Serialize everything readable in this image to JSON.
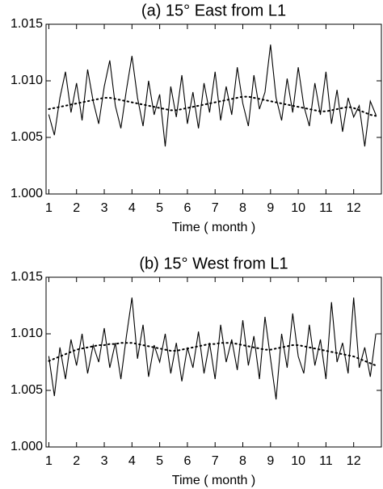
{
  "chart_data": [
    {
      "type": "line",
      "title": "(a) 15° East from L1",
      "xlabel": "Time ( month )",
      "xlim": [
        0.9,
        13
      ],
      "ylim": [
        1.0,
        1.015
      ],
      "xticks": [
        1,
        2,
        3,
        4,
        5,
        6,
        7,
        8,
        9,
        10,
        11,
        12
      ],
      "yticks": [
        {
          "value": 1.0,
          "label": "1.000"
        },
        {
          "value": 1.005,
          "label": "1.005"
        },
        {
          "value": 1.01,
          "label": "1.010"
        },
        {
          "value": 1.015,
          "label": "1.015"
        }
      ],
      "x": [
        1,
        1.2,
        1.4,
        1.6,
        1.8,
        2,
        2.2,
        2.4,
        2.6,
        2.8,
        3,
        3.2,
        3.4,
        3.6,
        3.8,
        4,
        4.2,
        4.4,
        4.6,
        4.8,
        5,
        5.2,
        5.4,
        5.6,
        5.8,
        6,
        6.2,
        6.4,
        6.6,
        6.8,
        7,
        7.2,
        7.4,
        7.6,
        7.8,
        8,
        8.2,
        8.4,
        8.6,
        8.8,
        9,
        9.2,
        9.4,
        9.6,
        9.8,
        10,
        10.2,
        10.4,
        10.6,
        10.8,
        11,
        11.2,
        11.4,
        11.6,
        11.8,
        12,
        12.2,
        12.4,
        12.6,
        12.8
      ],
      "series": [
        {
          "color": "#000000",
          "style": "solid",
          "values": [
            1.007,
            1.0052,
            1.0085,
            1.0108,
            1.0072,
            1.0098,
            1.0065,
            1.011,
            1.0082,
            1.0062,
            1.0095,
            1.0118,
            1.0078,
            1.0058,
            1.0092,
            1.0122,
            1.0085,
            1.006,
            1.01,
            1.007,
            1.0088,
            1.0042,
            1.0095,
            1.0068,
            1.0105,
            1.0062,
            1.009,
            1.0058,
            1.0098,
            1.0072,
            1.0108,
            1.0065,
            1.0095,
            1.007,
            1.0112,
            1.008,
            1.006,
            1.0105,
            1.0075,
            1.009,
            1.0132,
            1.0085,
            1.0065,
            1.0102,
            1.0072,
            1.0112,
            1.0078,
            1.006,
            1.0098,
            1.007,
            1.0108,
            1.0062,
            1.0092,
            1.0055,
            1.0085,
            1.0068,
            1.0078,
            1.0042,
            1.0082,
            1.007
          ]
        },
        {
          "color": "#000000",
          "style": "dotted",
          "values": [
            1.0075,
            1.0076,
            1.0077,
            1.0078,
            1.0079,
            1.008,
            1.0081,
            1.0082,
            1.0083,
            1.0084,
            1.0085,
            1.0085,
            1.0084,
            1.0083,
            1.0082,
            1.0081,
            1.008,
            1.0079,
            1.0078,
            1.0077,
            1.0076,
            1.0075,
            1.0074,
            1.0074,
            1.0075,
            1.0076,
            1.0077,
            1.0078,
            1.0079,
            1.008,
            1.0081,
            1.0082,
            1.0083,
            1.0084,
            1.0085,
            1.0086,
            1.0086,
            1.0085,
            1.0084,
            1.0083,
            1.0082,
            1.0081,
            1.008,
            1.0079,
            1.0078,
            1.0077,
            1.0076,
            1.0075,
            1.0074,
            1.0073,
            1.0073,
            1.0074,
            1.0075,
            1.0076,
            1.0077,
            1.0076,
            1.0074,
            1.0072,
            1.007,
            1.0069
          ]
        }
      ]
    },
    {
      "type": "line",
      "title": "(b) 15° West from L1",
      "xlabel": "Time ( month )",
      "xlim": [
        0.9,
        13
      ],
      "ylim": [
        1.0,
        1.015
      ],
      "xticks": [
        1,
        2,
        3,
        4,
        5,
        6,
        7,
        8,
        9,
        10,
        11,
        12
      ],
      "yticks": [
        {
          "value": 1.0,
          "label": "1.000"
        },
        {
          "value": 1.005,
          "label": "1.005"
        },
        {
          "value": 1.01,
          "label": "1.010"
        },
        {
          "value": 1.015,
          "label": "1.015"
        }
      ],
      "x": [
        1,
        1.2,
        1.4,
        1.6,
        1.8,
        2,
        2.2,
        2.4,
        2.6,
        2.8,
        3,
        3.2,
        3.4,
        3.6,
        3.8,
        4,
        4.2,
        4.4,
        4.6,
        4.8,
        5,
        5.2,
        5.4,
        5.6,
        5.8,
        6,
        6.2,
        6.4,
        6.6,
        6.8,
        7,
        7.2,
        7.4,
        7.6,
        7.8,
        8,
        8.2,
        8.4,
        8.6,
        8.8,
        9,
        9.2,
        9.4,
        9.6,
        9.8,
        10,
        10.2,
        10.4,
        10.6,
        10.8,
        11,
        11.2,
        11.4,
        11.6,
        11.8,
        12,
        12.2,
        12.4,
        12.6,
        12.8
      ],
      "series": [
        {
          "color": "#000000",
          "style": "solid",
          "values": [
            1.008,
            1.0045,
            1.0088,
            1.006,
            1.0095,
            1.0072,
            1.01,
            1.0065,
            1.009,
            1.0075,
            1.0105,
            1.007,
            1.0092,
            1.006,
            1.0098,
            1.0132,
            1.0078,
            1.0108,
            1.0062,
            1.009,
            1.0075,
            1.01,
            1.0065,
            1.0092,
            1.0058,
            1.0088,
            1.007,
            1.0102,
            1.0065,
            1.0092,
            1.006,
            1.0108,
            1.0075,
            1.0095,
            1.0068,
            1.0112,
            1.0072,
            1.0098,
            1.006,
            1.0115,
            1.0078,
            1.0042,
            1.01,
            1.007,
            1.0118,
            1.008,
            1.0065,
            1.0108,
            1.0072,
            1.0095,
            1.006,
            1.0128,
            1.0075,
            1.0092,
            1.0065,
            1.0132,
            1.007,
            1.0088,
            1.0062,
            1.01
          ]
        },
        {
          "color": "#000000",
          "style": "dotted",
          "values": [
            1.0076,
            1.0078,
            1.008,
            1.0082,
            1.0084,
            1.0086,
            1.0087,
            1.0088,
            1.0089,
            1.009,
            1.009,
            1.0091,
            1.0091,
            1.0092,
            1.0092,
            1.0092,
            1.0091,
            1.009,
            1.0089,
            1.0088,
            1.0087,
            1.0086,
            1.0085,
            1.0085,
            1.0086,
            1.0087,
            1.0088,
            1.0089,
            1.009,
            1.0091,
            1.0091,
            1.0092,
            1.0092,
            1.0092,
            1.0091,
            1.009,
            1.0089,
            1.0088,
            1.0087,
            1.0086,
            1.0086,
            1.0087,
            1.0088,
            1.0089,
            1.009,
            1.009,
            1.0089,
            1.0088,
            1.0087,
            1.0086,
            1.0085,
            1.0084,
            1.0083,
            1.0082,
            1.0081,
            1.008,
            1.0078,
            1.0076,
            1.0074,
            1.0072
          ]
        }
      ]
    }
  ]
}
